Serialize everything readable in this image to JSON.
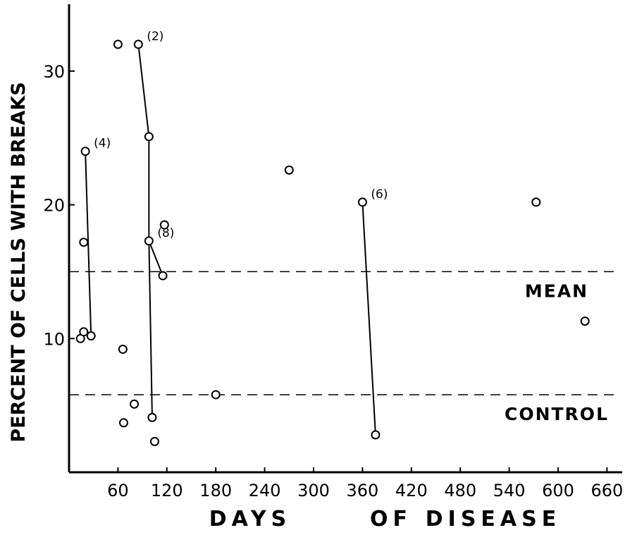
{
  "chart_data": {
    "type": "scatter",
    "xlabel": "DAYS OF DISEASE",
    "ylabel": "PERCENT OF CELLS WITH BREAKS",
    "xlim": [
      0,
      670
    ],
    "ylim": [
      0,
      35
    ],
    "x_ticks": [
      60,
      120,
      180,
      240,
      300,
      360,
      420,
      480,
      540,
      600,
      660
    ],
    "y_ticks": [
      10,
      20,
      30
    ],
    "grid": false,
    "points": [
      {
        "x": 14,
        "y": 10.0
      },
      {
        "x": 18,
        "y": 10.5
      },
      {
        "x": 18,
        "y": 17.2
      },
      {
        "x": 20,
        "y": 24.0
      },
      {
        "x": 27,
        "y": 10.2
      },
      {
        "x": 60,
        "y": 32.0
      },
      {
        "x": 66,
        "y": 9.2
      },
      {
        "x": 67,
        "y": 3.7
      },
      {
        "x": 80,
        "y": 5.1
      },
      {
        "x": 85,
        "y": 32.0
      },
      {
        "x": 98,
        "y": 25.1
      },
      {
        "x": 98,
        "y": 17.3
      },
      {
        "x": 102,
        "y": 4.1
      },
      {
        "x": 105,
        "y": 2.3
      },
      {
        "x": 115,
        "y": 14.7
      },
      {
        "x": 117,
        "y": 18.5
      },
      {
        "x": 180,
        "y": 5.8
      },
      {
        "x": 270,
        "y": 22.6
      },
      {
        "x": 360,
        "y": 20.2
      },
      {
        "x": 376,
        "y": 2.8
      },
      {
        "x": 573,
        "y": 20.2
      },
      {
        "x": 633,
        "y": 11.3
      }
    ],
    "connections": [
      {
        "from": [
          20,
          24.0
        ],
        "to": [
          27,
          10.2
        ],
        "label": "(4)"
      },
      {
        "from": [
          85,
          32.0
        ],
        "to": [
          98,
          25.1
        ],
        "label": "(2)"
      },
      {
        "from": [
          98,
          25.1
        ],
        "to": [
          98,
          17.3
        ]
      },
      {
        "from": [
          98,
          17.3
        ],
        "to": [
          102,
          4.1
        ]
      },
      {
        "from": [
          98,
          17.3
        ],
        "to": [
          115,
          14.7
        ],
        "label": "(8)"
      },
      {
        "from": [
          360,
          20.2
        ],
        "to": [
          376,
          2.8
        ],
        "label": "(6)"
      }
    ],
    "reference_lines": [
      {
        "name": "MEAN",
        "y": 15.0,
        "style": "dashed"
      },
      {
        "name": "CONTROL",
        "y": 5.8,
        "style": "dashed"
      }
    ]
  }
}
